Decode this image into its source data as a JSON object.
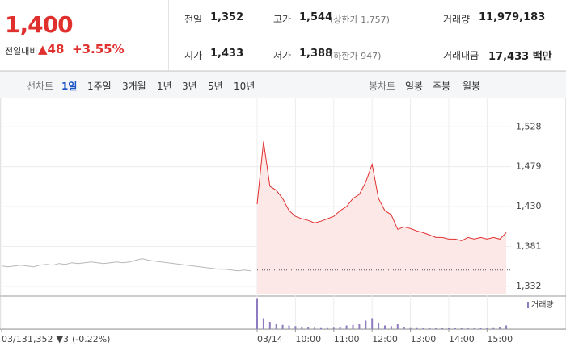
{
  "header": {
    "price": "1,400",
    "change_label": "전일대비",
    "change": "▲48",
    "change_pct": "+3.55%"
  },
  "summary": {
    "rows": [
      [
        {
          "label": "전일",
          "value": "1,352"
        },
        {
          "label": "고가",
          "value": "1,544",
          "note": "(상한가 1,757)"
        },
        {
          "label": "거래량",
          "value": "11,979,183"
        }
      ],
      [
        {
          "label": "시가",
          "value": "1,433"
        },
        {
          "label": "저가",
          "value": "1,388",
          "note": "(하한가 947)"
        },
        {
          "label": "거래대금",
          "value": "17,433 백만"
        }
      ]
    ]
  },
  "tabs": {
    "line_label": "선차트",
    "line_periods": [
      "1일",
      "1주일",
      "3개월",
      "1년",
      "3년",
      "5년",
      "10년"
    ],
    "selected": 0,
    "candle_label": "봉차트",
    "candle_periods": [
      "일봉",
      "주봉",
      "월봉"
    ]
  },
  "info": {
    "price": "1,352",
    "change": "▼3",
    "change_pct": "(-0.22%)"
  },
  "chart_data": {
    "type": "line",
    "categories": [
      "03/13",
      null,
      null,
      null,
      null,
      null,
      null,
      null,
      null,
      null,
      null,
      null,
      null,
      null,
      null,
      null,
      null,
      null,
      null,
      null,
      null,
      null,
      null,
      null,
      null,
      null,
      null,
      null,
      null,
      null,
      null,
      null,
      null,
      null,
      null,
      null,
      null,
      null,
      null,
      null,
      "03/14",
      null,
      null,
      null,
      null,
      null,
      "10:00",
      null,
      null,
      null,
      null,
      null,
      "11:00",
      null,
      null,
      null,
      null,
      null,
      "12:00",
      null,
      null,
      null,
      null,
      null,
      "13:00",
      null,
      null,
      null,
      null,
      null,
      "14:00",
      null,
      null,
      null,
      null,
      null,
      "15:00",
      null,
      null,
      null
    ],
    "series": [
      {
        "color": "#b8b8b8",
        "values": [
          1357,
          1356,
          1357,
          1358,
          1357,
          1356,
          1358,
          1359,
          1358,
          1360,
          1359,
          1361,
          1360,
          1361,
          1362,
          1361,
          1360,
          1361,
          1362,
          1361,
          1362,
          1364,
          1366,
          1364,
          1363,
          1362,
          1361,
          1360,
          1359,
          1358,
          1357,
          1356,
          1355,
          1354,
          1353,
          1353,
          1352,
          1351,
          1352,
          1351,
          null,
          null,
          null,
          null,
          null,
          null,
          null,
          null,
          null,
          null,
          null,
          null,
          null,
          null,
          null,
          null,
          null,
          null,
          null,
          null,
          null,
          null,
          null,
          null,
          null,
          null,
          null,
          null,
          null,
          null,
          null,
          null,
          null,
          null,
          null,
          null,
          null,
          null,
          null,
          null
        ]
      },
      {
        "color": "#e0302e",
        "fill": "#fde8e8",
        "values": [
          null,
          null,
          null,
          null,
          null,
          null,
          null,
          null,
          null,
          null,
          null,
          null,
          null,
          null,
          null,
          null,
          null,
          null,
          null,
          null,
          null,
          null,
          null,
          null,
          null,
          null,
          null,
          null,
          null,
          null,
          null,
          null,
          null,
          null,
          null,
          null,
          null,
          null,
          null,
          null,
          1433,
          1510,
          1455,
          1450,
          1440,
          1425,
          1418,
          1415,
          1413,
          1410,
          1412,
          1415,
          1418,
          1425,
          1430,
          1440,
          1445,
          1460,
          1482,
          1440,
          1425,
          1420,
          1402,
          1405,
          1403,
          1400,
          1398,
          1395,
          1392,
          1392,
          1390,
          1390,
          1388,
          1392,
          1390,
          1392,
          1390,
          1392,
          1390,
          1398
        ]
      },
      {
        "name": "거래량",
        "type": "bar",
        "axis": "volume",
        "color": "#8f7bbf",
        "values": [
          null,
          null,
          null,
          null,
          null,
          null,
          null,
          null,
          null,
          null,
          null,
          null,
          null,
          null,
          null,
          null,
          null,
          null,
          null,
          null,
          null,
          null,
          null,
          null,
          null,
          null,
          null,
          null,
          null,
          null,
          null,
          null,
          null,
          null,
          null,
          null,
          null,
          null,
          null,
          null,
          2500000,
          900000,
          600000,
          400000,
          350000,
          300000,
          250000,
          200000,
          200000,
          180000,
          150000,
          150000,
          180000,
          200000,
          300000,
          350000,
          400000,
          700000,
          900000,
          500000,
          300000,
          250000,
          400000,
          200000,
          150000,
          150000,
          120000,
          100000,
          100000,
          120000,
          100000,
          100000,
          120000,
          100000,
          100000,
          100000,
          120000,
          150000,
          200000,
          300000
        ]
      }
    ],
    "reference_line": 1352,
    "ylim": [
      1322,
      1560
    ],
    "yticks": [
      {
        "value": 1332,
        "label": "1,332"
      },
      {
        "value": 1381,
        "label": "1,381"
      },
      {
        "value": 1430,
        "label": "1,430"
      },
      {
        "value": 1479,
        "label": "1,479"
      },
      {
        "value": 1528,
        "label": "1,528"
      }
    ],
    "volume_lim": [
      0,
      2600000
    ],
    "grid": true
  }
}
